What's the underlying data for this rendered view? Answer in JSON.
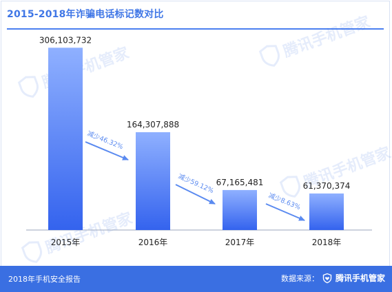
{
  "header": {
    "title": "2015-2018年诈骗电话标记数对比"
  },
  "footer": {
    "report_label": "2018年手机安全报告",
    "source_label": "数据来源：",
    "source_name": "腾讯手机管家",
    "source_icon": "shield-heart-icon"
  },
  "watermark": {
    "text": "腾讯手机管家"
  },
  "colors": {
    "accent": "#3f76e6",
    "bar_top": "#8fb0ff",
    "bar_bottom": "#3463ee",
    "arrow": "#5a8af0",
    "footer_bg": "#3a6fe2"
  },
  "chart_data": {
    "type": "bar",
    "title": "2015-2018年诈骗电话标记数对比",
    "xlabel": "",
    "ylabel": "",
    "categories": [
      "2015年",
      "2016年",
      "2017年",
      "2018年"
    ],
    "values": [
      306103732,
      164307888,
      67165481,
      61370374
    ],
    "value_labels": [
      "306,103,732",
      "164,307,888",
      "67,165,481",
      "61,370,374"
    ],
    "ylim": [
      0,
      340000000
    ],
    "grid": false,
    "annotations": [
      "减少46.32%",
      "减少59.12%",
      "减少8.63%"
    ]
  }
}
